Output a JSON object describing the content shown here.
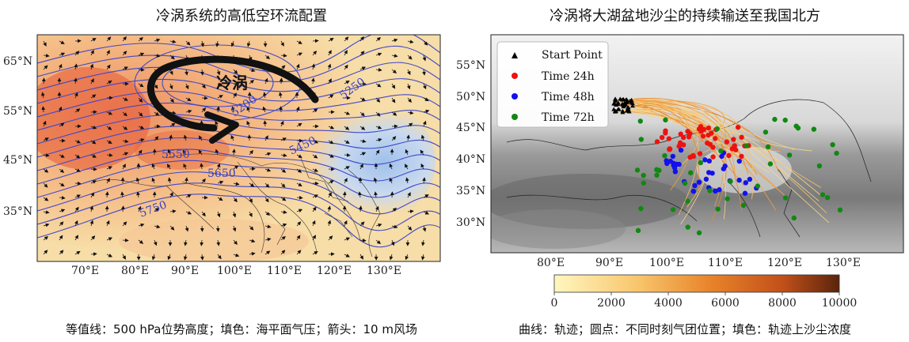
{
  "left_panel": {
    "title": "冷涡系统的高低空环流配置",
    "caption": "等值线：500 hPa位势高度；填色：海平面气压；箭头：10 m风场",
    "vortex_label": "冷涡",
    "contour_labels": [
      "5250",
      "5200",
      "5450",
      "5550",
      "5650",
      "5750"
    ],
    "lat_ticks": [
      "65°N",
      "55°N",
      "45°N",
      "35°N"
    ],
    "lon_ticks": [
      "70°E",
      "80°E",
      "90°E",
      "100°E",
      "110°E",
      "120°E",
      "130°E"
    ]
  },
  "right_panel": {
    "title": "冷涡将大湖盆地沙尘的持续输送至我国北方",
    "caption": "曲线：轨迹；圆点：不同时刻气团位置；填色：轨迹上沙尘浓度",
    "lat_ticks": [
      "55°N",
      "50°N",
      "45°N",
      "40°N",
      "35°N",
      "30°N"
    ],
    "lon_ticks": [
      "80°E",
      "90°E",
      "100°E",
      "110°E",
      "120°E",
      "130°E"
    ],
    "legend": [
      {
        "label": "Start Point",
        "marker": "triangle",
        "color": "#000000"
      },
      {
        "label": "Time 24h",
        "marker": "dot",
        "color": "#ee1111"
      },
      {
        "label": "Time 48h",
        "marker": "dot",
        "color": "#1111ee"
      },
      {
        "label": "Time 72h",
        "marker": "dot",
        "color": "#118811"
      }
    ],
    "colorbar": {
      "ticks": [
        "0",
        "2000",
        "4000",
        "6000",
        "8000",
        "10000"
      ],
      "colors": [
        "#fff7c0",
        "#f8c46a",
        "#e8832a",
        "#c2501a",
        "#6a2a10"
      ]
    }
  }
}
